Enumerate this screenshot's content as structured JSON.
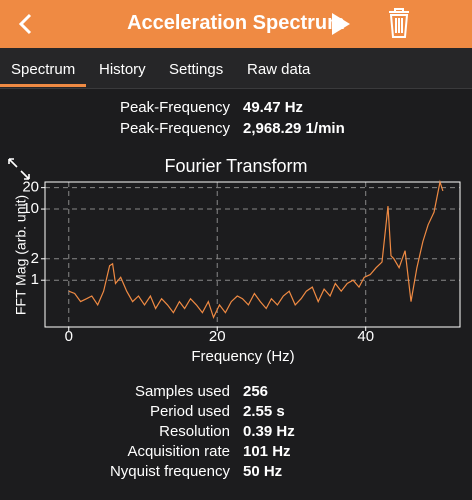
{
  "header": {
    "title": "Acceleration Spectrum"
  },
  "tabs": [
    "Spectrum",
    "History",
    "Settings",
    "Raw data"
  ],
  "peaks": [
    {
      "label": "Peak-Frequency",
      "value": "49.47 Hz"
    },
    {
      "label": "Peak-Frequency",
      "value": "2,968.29 1/min"
    }
  ],
  "chart_data": {
    "type": "line",
    "title": "Fourier Transform",
    "x_label": "Frequency (Hz)",
    "y_label": "FFT Mag (arb. unit)",
    "x": [
      0,
      0.8,
      1.6,
      2.4,
      3.1,
      3.9,
      4.7,
      5.5,
      5.9,
      6.3,
      7.0,
      7.8,
      8.6,
      9.4,
      10.2,
      11.0,
      11.7,
      12.5,
      13.3,
      14.1,
      14.9,
      15.6,
      16.4,
      17.2,
      18.0,
      18.8,
      19.5,
      20.3,
      21.1,
      21.9,
      22.7,
      23.4,
      24.2,
      25.0,
      25.8,
      26.6,
      27.3,
      28.1,
      28.9,
      29.7,
      30.5,
      31.3,
      32.0,
      32.8,
      33.6,
      34.4,
      35.2,
      35.9,
      36.7,
      37.5,
      38.3,
      39.1,
      39.8,
      40.6,
      41.4,
      42.2,
      43.0,
      43.4,
      43.8,
      44.5,
      45.3,
      46.1,
      46.9,
      47.7,
      48.4,
      49.2,
      50.0,
      50.4
    ],
    "values": [
      0.7,
      0.65,
      0.5,
      0.55,
      0.6,
      0.45,
      0.7,
      1.6,
      1.7,
      0.9,
      1.1,
      0.7,
      0.5,
      0.6,
      0.45,
      0.6,
      0.4,
      0.55,
      0.45,
      0.35,
      0.5,
      0.4,
      0.55,
      0.45,
      0.35,
      0.5,
      0.3,
      0.45,
      0.35,
      0.5,
      0.6,
      0.55,
      0.45,
      0.65,
      0.5,
      0.4,
      0.55,
      0.45,
      0.6,
      0.7,
      0.45,
      0.55,
      0.7,
      0.8,
      0.5,
      0.75,
      0.6,
      0.9,
      0.7,
      0.9,
      1.0,
      0.8,
      1.1,
      1.2,
      1.5,
      1.8,
      11,
      2.2,
      2.0,
      1.5,
      2.6,
      0.5,
      1.5,
      3.5,
      6,
      9,
      24,
      18
    ],
    "color": "#ef8a43",
    "log_y": true,
    "grid": true,
    "xlim": [
      -3.2,
      52.7
    ],
    "ylim": [
      0.22,
      24
    ],
    "xticks": [
      0,
      20,
      40
    ],
    "yticks": [
      1,
      2,
      10,
      20
    ]
  },
  "stats": [
    {
      "label": "Samples used",
      "value": "256"
    },
    {
      "label": "Period used",
      "value": "2.55 s"
    },
    {
      "label": "Resolution",
      "value": "0.39 Hz"
    },
    {
      "label": "Acquisition rate",
      "value": "101 Hz"
    },
    {
      "label": "Nyquist frequency",
      "value": "50 Hz"
    }
  ]
}
